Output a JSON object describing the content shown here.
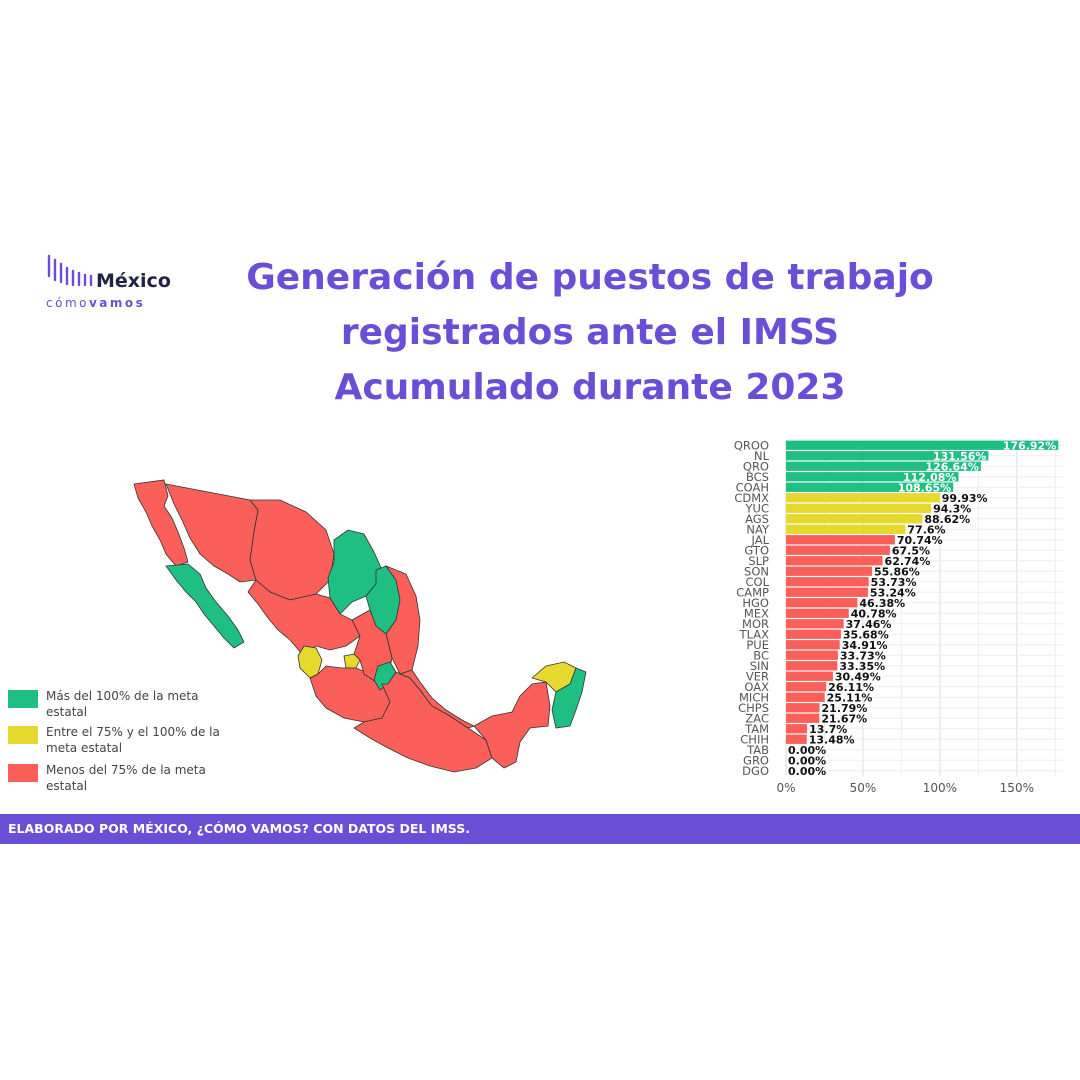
{
  "logo": {
    "name": "México",
    "tag_light": "cómo",
    "tag_bold": "vamos"
  },
  "title": {
    "line1": "Generación de puestos de trabajo",
    "line2": "registrados ante el IMSS",
    "line3": "Acumulado durante 2023"
  },
  "legend": [
    {
      "label": "Más del 100% de la meta estatal",
      "color": "#1fbe83"
    },
    {
      "label": "Entre el 75% y el 100% de la meta estatal",
      "color": "#e6d92e"
    },
    {
      "label": "Menos del 75% de la meta estatal",
      "color": "#fa5f5a"
    }
  ],
  "map": {
    "icon": "mexico-states-choropleth"
  },
  "footer": {
    "text": "ELABORADO POR MÉXICO, ¿CÓMO VAMOS? CON DATOS DEL IMSS."
  },
  "chart_data": {
    "type": "bar",
    "orientation": "horizontal",
    "categories": [
      "QROO",
      "NL",
      "QRO",
      "BCS",
      "COAH",
      "CDMX",
      "YUC",
      "AGS",
      "NAY",
      "JAL",
      "GTO",
      "SLP",
      "SON",
      "COL",
      "CAMP",
      "HGO",
      "MEX",
      "MOR",
      "TLAX",
      "PUE",
      "BC",
      "SIN",
      "VER",
      "OAX",
      "MICH",
      "CHPS",
      "ZAC",
      "TAM",
      "CHIH",
      "TAB",
      "GRO",
      "DGO"
    ],
    "values": [
      176.92,
      131.56,
      126.64,
      112.08,
      108.65,
      99.93,
      94.3,
      88.62,
      77.6,
      70.74,
      67.5,
      62.74,
      55.86,
      53.73,
      53.24,
      46.38,
      40.78,
      37.46,
      35.68,
      34.91,
      33.73,
      33.35,
      30.49,
      26.11,
      25.11,
      21.79,
      21.67,
      13.7,
      13.48,
      0,
      0,
      0
    ],
    "labels": [
      "176.92%",
      "131.56%",
      "126.64%",
      "112.08%",
      "108.65%",
      "99.93%",
      "94.3%",
      "88.62%",
      "77.6%",
      "70.74%",
      "67.5%",
      "62.74%",
      "55.86%",
      "53.73%",
      "53.24%",
      "46.38%",
      "40.78%",
      "37.46%",
      "35.68%",
      "34.91%",
      "33.73%",
      "33.35%",
      "30.49%",
      "26.11%",
      "25.11%",
      "21.79%",
      "21.67%",
      "13.7%",
      "13.48%",
      "0.00%",
      "0.00%",
      "0.00%"
    ],
    "colors": {
      "above_100": "#1fbe83",
      "between_75_100": "#e6d92e",
      "below_75": "#fa5f5a"
    },
    "xlim": [
      0,
      180
    ],
    "xticks": [
      0,
      50,
      100,
      150
    ],
    "xtick_labels": [
      "0%",
      "50%",
      "100%",
      "150%"
    ],
    "grid": true,
    "title": "",
    "xlabel": "",
    "ylabel": ""
  }
}
